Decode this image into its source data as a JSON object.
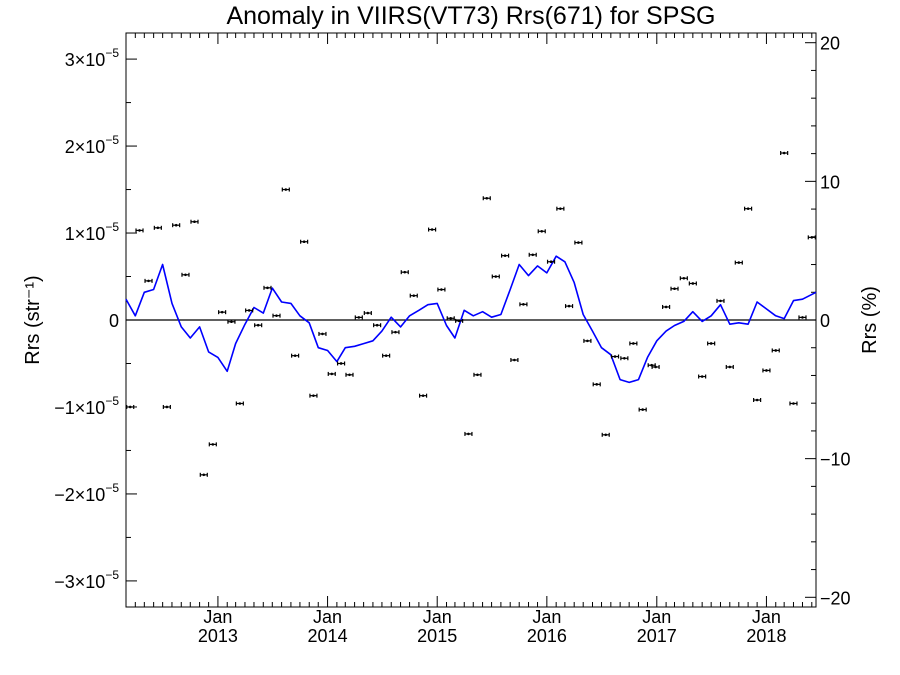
{
  "chart_data": {
    "type": "scatter",
    "title": "Anomaly in VIIRS(VT73) Rrs(671) for SPSG",
    "ylabel_left": "Rrs (str⁻¹)",
    "ylabel_right": "Rrs (%)",
    "xlim": [
      "2012-03-01",
      "2018-06-15"
    ],
    "ylim_left": [
      -3.3e-05,
      3.3e-05
    ],
    "ylim_right": [
      -20.7,
      20.7
    ],
    "grid": false,
    "x_ticks": [
      {
        "date": "2013-01-01",
        "label_top": "Jan",
        "label_bottom": "2013"
      },
      {
        "date": "2014-01-01",
        "label_top": "Jan",
        "label_bottom": "2014"
      },
      {
        "date": "2015-01-01",
        "label_top": "Jan",
        "label_bottom": "2015"
      },
      {
        "date": "2016-01-01",
        "label_top": "Jan",
        "label_bottom": "2016"
      },
      {
        "date": "2017-01-01",
        "label_top": "Jan",
        "label_bottom": "2017"
      },
      {
        "date": "2018-01-01",
        "label_top": "Jan",
        "label_bottom": "2018"
      }
    ],
    "y_ticks_left": [
      {
        "value": 3e-05,
        "mant": "3",
        "exp": "−5"
      },
      {
        "value": 2e-05,
        "mant": "2",
        "exp": "−5"
      },
      {
        "value": 1e-05,
        "mant": "1",
        "exp": "−5"
      },
      {
        "value": 0,
        "mant": "0",
        "exp": ""
      },
      {
        "value": -1e-05,
        "mant": "−1",
        "exp": "−5"
      },
      {
        "value": -2e-05,
        "mant": "−2",
        "exp": "−5"
      },
      {
        "value": -3e-05,
        "mant": "−3",
        "exp": "−5"
      }
    ],
    "y_ticks_right": [
      {
        "value": 20,
        "label": "20"
      },
      {
        "value": 10,
        "label": "10"
      },
      {
        "value": 0,
        "label": "0"
      },
      {
        "value": -10,
        "label": "−10"
      },
      {
        "value": -20,
        "label": "−20"
      }
    ],
    "series": [
      {
        "axis": "left",
        "style": "points-with-errorbars",
        "color": "#000000",
        "points": [
          [
            "2012-03-15",
            -1e-05
          ],
          [
            "2012-04-15",
            1.03e-05
          ],
          [
            "2012-05-15",
            4.5e-06
          ],
          [
            "2012-06-15",
            1.06e-05
          ],
          [
            "2012-07-15",
            -1e-05
          ],
          [
            "2012-08-15",
            1.09e-05
          ],
          [
            "2012-09-15",
            5.2e-06
          ],
          [
            "2012-10-15",
            1.13e-05
          ],
          [
            "2012-11-15",
            -1.78e-05
          ],
          [
            "2012-12-15",
            -1.43e-05
          ],
          [
            "2013-01-15",
            9e-07
          ],
          [
            "2013-02-15",
            -2e-07
          ],
          [
            "2013-03-15",
            -9.6e-06
          ],
          [
            "2013-04-15",
            1.1e-06
          ],
          [
            "2013-05-15",
            -6e-07
          ],
          [
            "2013-06-15",
            3.7e-06
          ],
          [
            "2013-07-15",
            5e-07
          ],
          [
            "2013-08-15",
            1.5e-05
          ],
          [
            "2013-09-15",
            -4.1e-06
          ],
          [
            "2013-10-15",
            9e-06
          ],
          [
            "2013-11-15",
            -8.7e-06
          ],
          [
            "2013-12-15",
            -1.6e-06
          ],
          [
            "2014-01-15",
            -6.2e-06
          ],
          [
            "2014-02-15",
            -5e-06
          ],
          [
            "2014-03-15",
            -6.3e-06
          ],
          [
            "2014-04-15",
            3e-07
          ],
          [
            "2014-05-15",
            8e-07
          ],
          [
            "2014-06-15",
            -6e-07
          ],
          [
            "2014-07-15",
            -4.1e-06
          ],
          [
            "2014-08-15",
            -1.4e-06
          ],
          [
            "2014-09-15",
            5.5e-06
          ],
          [
            "2014-10-15",
            2.8e-06
          ],
          [
            "2014-11-15",
            -8.7e-06
          ],
          [
            "2014-12-15",
            1.04e-05
          ],
          [
            "2015-01-15",
            3.5e-06
          ],
          [
            "2015-02-15",
            2e-07
          ],
          [
            "2015-03-15",
            -1e-07
          ],
          [
            "2015-04-15",
            -1.31e-05
          ],
          [
            "2015-05-15",
            -6.3e-06
          ],
          [
            "2015-06-15",
            1.4e-05
          ],
          [
            "2015-07-15",
            5e-06
          ],
          [
            "2015-08-15",
            7.4e-06
          ],
          [
            "2015-09-15",
            -4.6e-06
          ],
          [
            "2015-10-15",
            1.8e-06
          ],
          [
            "2015-11-15",
            7.5e-06
          ],
          [
            "2015-12-15",
            1.02e-05
          ],
          [
            "2016-01-15",
            6.7e-06
          ],
          [
            "2016-02-15",
            1.28e-05
          ],
          [
            "2016-03-15",
            1.6e-06
          ],
          [
            "2016-04-15",
            8.9e-06
          ],
          [
            "2016-05-15",
            -2.4e-06
          ],
          [
            "2016-06-15",
            -7.4e-06
          ],
          [
            "2016-07-15",
            -1.32e-05
          ],
          [
            "2016-08-15",
            -4.2e-06
          ],
          [
            "2016-09-15",
            -4.4e-06
          ],
          [
            "2016-10-15",
            -2.7e-06
          ],
          [
            "2016-11-15",
            -1.03e-05
          ],
          [
            "2016-12-15",
            -5.2e-06
          ],
          [
            "2016-12-28",
            -5.4e-06
          ],
          [
            "2017-02-01",
            1.5e-06
          ],
          [
            "2017-03-01",
            3.6e-06
          ],
          [
            "2017-04-01",
            4.8e-06
          ],
          [
            "2017-05-01",
            4.2e-06
          ],
          [
            "2017-06-01",
            -6.5e-06
          ],
          [
            "2017-07-01",
            -2.7e-06
          ],
          [
            "2017-08-01",
            2.2e-06
          ],
          [
            "2017-09-01",
            -5.4e-06
          ],
          [
            "2017-10-01",
            6.6e-06
          ],
          [
            "2017-11-01",
            1.28e-05
          ],
          [
            "2017-12-01",
            -9.2e-06
          ],
          [
            "2018-01-01",
            -5.8e-06
          ],
          [
            "2018-02-01",
            -3.5e-06
          ],
          [
            "2018-03-01",
            1.92e-05
          ],
          [
            "2018-04-01",
            -9.6e-06
          ],
          [
            "2018-05-01",
            3e-07
          ],
          [
            "2018-06-01",
            9.5e-06
          ]
        ]
      },
      {
        "axis": "right",
        "style": "line",
        "color": "#0000ff",
        "points": [
          [
            "2012-03-01",
            1.5
          ],
          [
            "2012-04-01",
            0.3
          ],
          [
            "2012-05-01",
            2.0
          ],
          [
            "2012-06-01",
            2.2
          ],
          [
            "2012-07-01",
            4.0
          ],
          [
            "2012-08-01",
            1.2
          ],
          [
            "2012-09-01",
            -0.5
          ],
          [
            "2012-10-01",
            -1.3
          ],
          [
            "2012-11-01",
            -0.5
          ],
          [
            "2012-12-01",
            -2.3
          ],
          [
            "2013-01-01",
            -2.7
          ],
          [
            "2013-02-01",
            -3.7
          ],
          [
            "2013-03-01",
            -1.7
          ],
          [
            "2013-04-01",
            -0.3
          ],
          [
            "2013-05-01",
            0.9
          ],
          [
            "2013-06-01",
            0.5
          ],
          [
            "2013-07-01",
            2.3
          ],
          [
            "2013-08-01",
            1.3
          ],
          [
            "2013-09-01",
            1.2
          ],
          [
            "2013-10-01",
            0.3
          ],
          [
            "2013-11-01",
            -0.2
          ],
          [
            "2013-12-01",
            -2.0
          ],
          [
            "2014-01-01",
            -2.2
          ],
          [
            "2014-02-01",
            -3.0
          ],
          [
            "2014-03-01",
            -2.0
          ],
          [
            "2014-04-01",
            -1.9
          ],
          [
            "2014-05-01",
            -1.7
          ],
          [
            "2014-06-01",
            -1.5
          ],
          [
            "2014-07-01",
            -0.8
          ],
          [
            "2014-08-01",
            0.2
          ],
          [
            "2014-09-01",
            -0.5
          ],
          [
            "2014-10-01",
            0.3
          ],
          [
            "2014-11-01",
            0.7
          ],
          [
            "2014-12-01",
            1.1
          ],
          [
            "2015-01-01",
            1.2
          ],
          [
            "2015-02-01",
            -0.4
          ],
          [
            "2015-03-01",
            -1.3
          ],
          [
            "2015-04-01",
            0.7
          ],
          [
            "2015-05-01",
            0.3
          ],
          [
            "2015-06-01",
            0.6
          ],
          [
            "2015-07-01",
            0.2
          ],
          [
            "2015-08-01",
            0.4
          ],
          [
            "2015-09-01",
            2.2
          ],
          [
            "2015-10-01",
            4.0
          ],
          [
            "2015-11-01",
            3.2
          ],
          [
            "2015-12-01",
            3.9
          ],
          [
            "2016-01-01",
            3.4
          ],
          [
            "2016-02-01",
            4.6
          ],
          [
            "2016-03-01",
            4.2
          ],
          [
            "2016-04-01",
            2.7
          ],
          [
            "2016-05-01",
            0.4
          ],
          [
            "2016-06-01",
            -0.8
          ],
          [
            "2016-07-01",
            -2.0
          ],
          [
            "2016-08-01",
            -2.5
          ],
          [
            "2016-09-01",
            -4.3
          ],
          [
            "2016-10-01",
            -4.5
          ],
          [
            "2016-11-01",
            -4.3
          ],
          [
            "2016-12-01",
            -2.7
          ],
          [
            "2017-01-01",
            -1.5
          ],
          [
            "2017-02-01",
            -0.8
          ],
          [
            "2017-03-01",
            -0.4
          ],
          [
            "2017-04-01",
            -0.1
          ],
          [
            "2017-05-01",
            0.6
          ],
          [
            "2017-06-01",
            -0.1
          ],
          [
            "2017-07-01",
            0.3
          ],
          [
            "2017-08-01",
            1.1
          ],
          [
            "2017-09-01",
            -0.3
          ],
          [
            "2017-10-01",
            -0.2
          ],
          [
            "2017-11-01",
            -0.3
          ],
          [
            "2017-12-01",
            1.3
          ],
          [
            "2018-01-01",
            0.8
          ],
          [
            "2018-02-01",
            0.3
          ],
          [
            "2018-03-01",
            0.1
          ],
          [
            "2018-04-01",
            1.4
          ],
          [
            "2018-05-01",
            1.5
          ],
          [
            "2018-06-15",
            2.0
          ]
        ]
      }
    ]
  }
}
